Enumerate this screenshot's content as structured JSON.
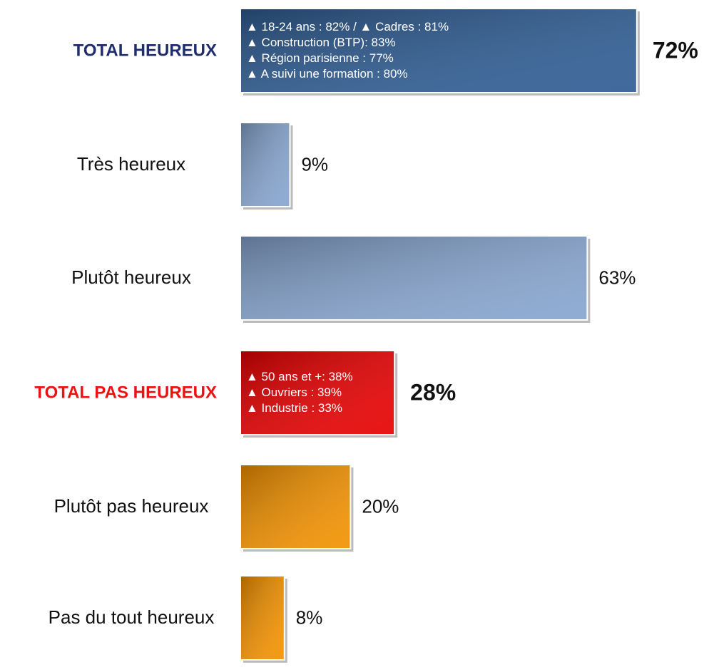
{
  "chart_data": {
    "type": "bar",
    "orientation": "horizontal",
    "categories": [
      "TOTAL HEUREUX",
      "Très heureux",
      "Plutôt heureux",
      "TOTAL PAS HEUREUX",
      "Plutôt pas heureux",
      "Pas du tout heureux"
    ],
    "values": [
      72,
      9,
      63,
      28,
      20,
      8
    ],
    "value_labels": [
      "72%",
      "9%",
      "63%",
      "28%",
      "20%",
      "8%"
    ],
    "colors": [
      "#2f5d94",
      "#87a5cf",
      "#87a5cf",
      "#e80000",
      "#f39200",
      "#f39200"
    ],
    "annotations": [
      [
        "▲ 18-24 ans : 82% / ▲ Cadres : 81%",
        "▲ Construction (BTP): 83%",
        "▲ Région parisienne : 77%",
        "▲ A suivi une formation : 80%"
      ],
      [],
      [],
      [
        "▲ 50 ans et +: 38%",
        "▲ Ouvriers : 39%",
        "▲ Industrie : 33%"
      ],
      [],
      []
    ],
    "xlim": [
      0,
      100
    ]
  }
}
